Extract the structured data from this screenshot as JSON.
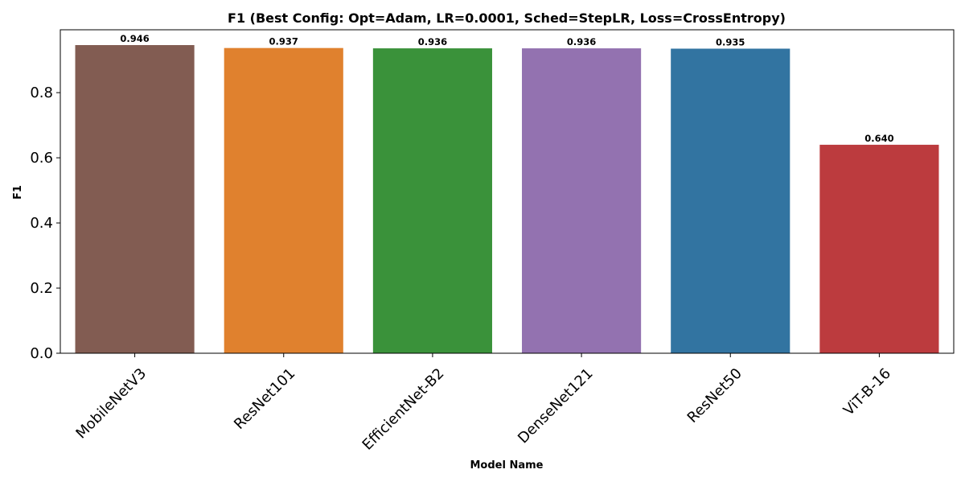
{
  "chart_data": {
    "type": "bar",
    "title": "F1 (Best Config: Opt=Adam, LR=0.0001, Sched=StepLR, Loss=CrossEntropy)",
    "xlabel": "Model Name",
    "ylabel": "F1",
    "categories": [
      "MobileNetV3",
      "ResNet101",
      "EfficientNet-B2",
      "DenseNet121",
      "ResNet50",
      "ViT-B-16"
    ],
    "values": [
      0.946,
      0.937,
      0.936,
      0.936,
      0.935,
      0.64
    ],
    "value_labels": [
      "0.946",
      "0.937",
      "0.936",
      "0.936",
      "0.935",
      "0.640"
    ],
    "colors": [
      "#825c52",
      "#e0812e",
      "#3a923a",
      "#9372b0",
      "#3274a1",
      "#bc3b3e"
    ],
    "ylim": [
      0,
      0.993
    ],
    "yticks": [
      0.0,
      0.2,
      0.4,
      0.6,
      0.8
    ],
    "ytick_labels": [
      "0.0",
      "0.2",
      "0.4",
      "0.6",
      "0.8"
    ],
    "grid": false,
    "legend": "none"
  }
}
